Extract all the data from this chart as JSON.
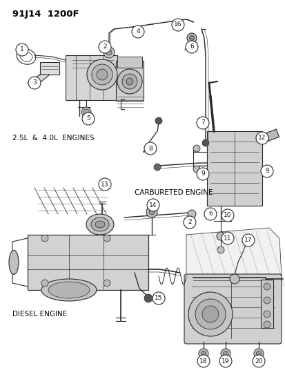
{
  "title": "91J14  1200F",
  "bg_color": "#ffffff",
  "lc": "#2a2a2a",
  "lc2": "#444444",
  "labels": {
    "engine_25_40": "2.5L  &  4.0L  ENGINES",
    "carbureted": "CARBURETED ENGINE",
    "diesel": "DIESEL ENGINE"
  },
  "fig_w": 4.14,
  "fig_h": 5.33,
  "dpi": 100
}
